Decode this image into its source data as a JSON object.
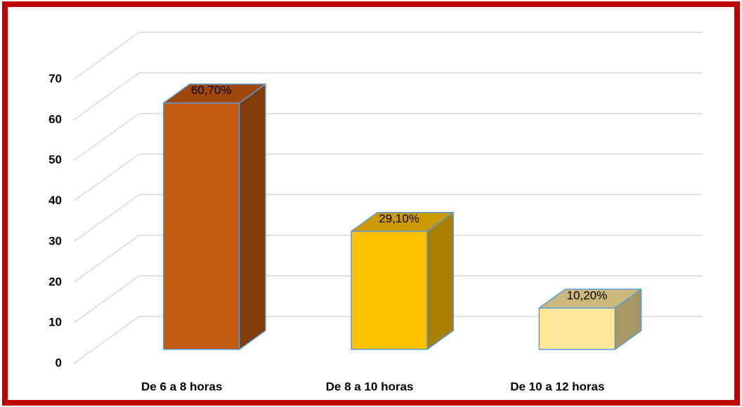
{
  "chart_data": {
    "type": "bar",
    "categories": [
      "De 6 a 8 horas",
      "De 8 a 10 horas",
      "De 10 a 12 horas"
    ],
    "values": [
      60.7,
      29.1,
      10.2
    ],
    "value_labels": [
      "60,70%",
      "29,10%",
      "10,20%"
    ],
    "colors": [
      "#c55a11",
      "#ffc000",
      "#ffe699"
    ],
    "ylim": [
      0,
      70
    ],
    "yticks": [
      0,
      10,
      20,
      30,
      40,
      50,
      60,
      70
    ],
    "grid": true
  }
}
